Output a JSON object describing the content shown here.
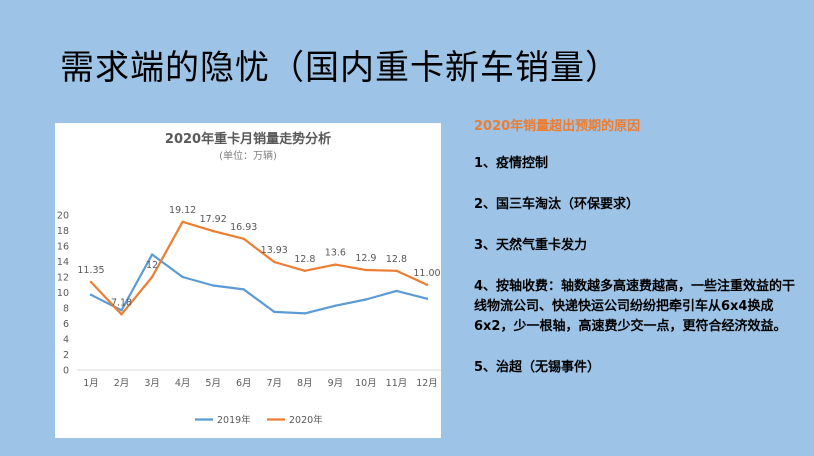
{
  "slide": {
    "title": "需求端的隐忧（国内重卡新车销量）"
  },
  "notes": {
    "heading": "2020年销量超出预期的原因",
    "items": [
      "1、疫情控制",
      "2、国三车淘汰（环保要求）",
      "3、天然气重卡发力",
      "4、按轴收费：轴数越多高速费越高，一些注重效益的干线物流公司、快递快运公司纷纷把牵引车从6x4换成6x2，少一根轴，高速费少交一点，更符合经济效益。",
      "5、治超（无锡事件）"
    ]
  },
  "chart_data": {
    "type": "line",
    "title": "2020年重卡月销量走势分析",
    "subtitle": "(单位：万辆)",
    "categories": [
      "1月",
      "2月",
      "3月",
      "4月",
      "5月",
      "6月",
      "7月",
      "8月",
      "9月",
      "10月",
      "11月",
      "12月"
    ],
    "ylim": [
      0,
      20
    ],
    "yticks": [
      0,
      2,
      4,
      6,
      8,
      10,
      12,
      14,
      16,
      18,
      20
    ],
    "grid": false,
    "legend": "bottom",
    "series": [
      {
        "name": "2019年",
        "color": "#5b9bd5",
        "values": [
          9.7,
          7.7,
          14.9,
          12.0,
          10.9,
          10.4,
          7.5,
          7.3,
          8.3,
          9.1,
          10.2,
          9.2
        ],
        "labels": [
          "",
          "",
          "",
          "",
          "",
          "",
          "",
          "",
          "",
          "",
          "",
          ""
        ]
      },
      {
        "name": "2020年",
        "color": "#ed7d31",
        "values": [
          11.35,
          7.18,
          12.0,
          19.12,
          17.92,
          16.93,
          13.93,
          12.8,
          13.6,
          12.9,
          12.8,
          11.0
        ],
        "labels": [
          "11.35",
          "7.18",
          "12",
          "19.12",
          "17.92",
          "16.93",
          "13.93",
          "12.8",
          "13.6",
          "12.9",
          "12.8",
          "11.00"
        ]
      }
    ]
  }
}
